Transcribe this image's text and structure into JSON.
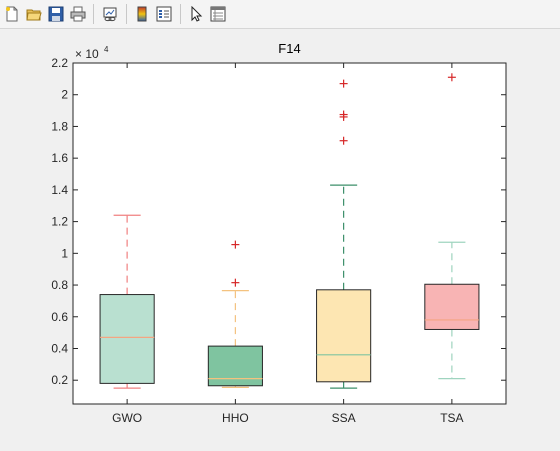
{
  "toolbar": {
    "buttons": [
      {
        "name": "new-figure-button",
        "icon": "new-file-icon"
      },
      {
        "name": "open-file-button",
        "icon": "open-folder-icon"
      },
      {
        "name": "save-figure-button",
        "icon": "save-disk-icon"
      },
      {
        "name": "print-figure-button",
        "icon": "printer-icon"
      },
      {
        "name": "link-plot-button",
        "icon": "link-plot-icon"
      },
      {
        "name": "insert-colorbar-button",
        "icon": "colorbar-icon"
      },
      {
        "name": "insert-legend-button",
        "icon": "legend-icon"
      },
      {
        "name": "edit-plot-button",
        "icon": "pointer-arrow-icon"
      },
      {
        "name": "property-inspector-button",
        "icon": "property-inspector-icon"
      }
    ]
  },
  "chart_data": {
    "type": "box",
    "title": "F14",
    "xlabel": "",
    "ylabel": "",
    "exponent_label": "× 10",
    "exponent_power": "4",
    "ylim": [
      0.05,
      2.2
    ],
    "yticks": [
      0.2,
      0.4,
      0.6,
      0.8,
      1,
      1.2,
      1.4,
      1.6,
      1.8,
      2,
      2.2
    ],
    "ytick_labels": [
      "0.2",
      "0.4",
      "0.6",
      "0.8",
      "1",
      "1.2",
      "1.4",
      "1.6",
      "1.8",
      "2",
      "2.2"
    ],
    "categories": [
      "GWO",
      "HHO",
      "SSA",
      "TSA"
    ],
    "boxes": [
      {
        "category": "GWO",
        "min": 0.15,
        "q1": 0.18,
        "median": 0.47,
        "q3": 0.74,
        "max": 1.24,
        "outliers": [],
        "fill": "#b9e0d0",
        "median_color": "#f4a582",
        "whisker_color": "#f08080"
      },
      {
        "category": "HHO",
        "min": 0.155,
        "q1": 0.165,
        "median": 0.21,
        "q3": 0.415,
        "max": 0.765,
        "outliers": [
          0.815,
          1.055
        ],
        "fill": "#7fc4a0",
        "median_color": "#f4c27f",
        "whisker_color": "#f4c27f"
      },
      {
        "category": "SSA",
        "min": 0.15,
        "q1": 0.19,
        "median": 0.36,
        "q3": 0.77,
        "max": 1.43,
        "outliers": [
          1.71,
          1.86,
          1.875,
          2.07
        ],
        "fill": "#fde6b2",
        "median_color": "#7fc4a0",
        "whisker_color": "#3c8f6a"
      },
      {
        "category": "TSA",
        "min": 0.21,
        "q1": 0.52,
        "median": 0.58,
        "q3": 0.805,
        "max": 1.07,
        "outliers": [
          2.11
        ],
        "fill": "#f8b4b4",
        "median_color": "#f4a582",
        "whisker_color": "#9fd4bf"
      }
    ],
    "outlier_color": "#d62728",
    "grid": false,
    "legend": "none"
  }
}
